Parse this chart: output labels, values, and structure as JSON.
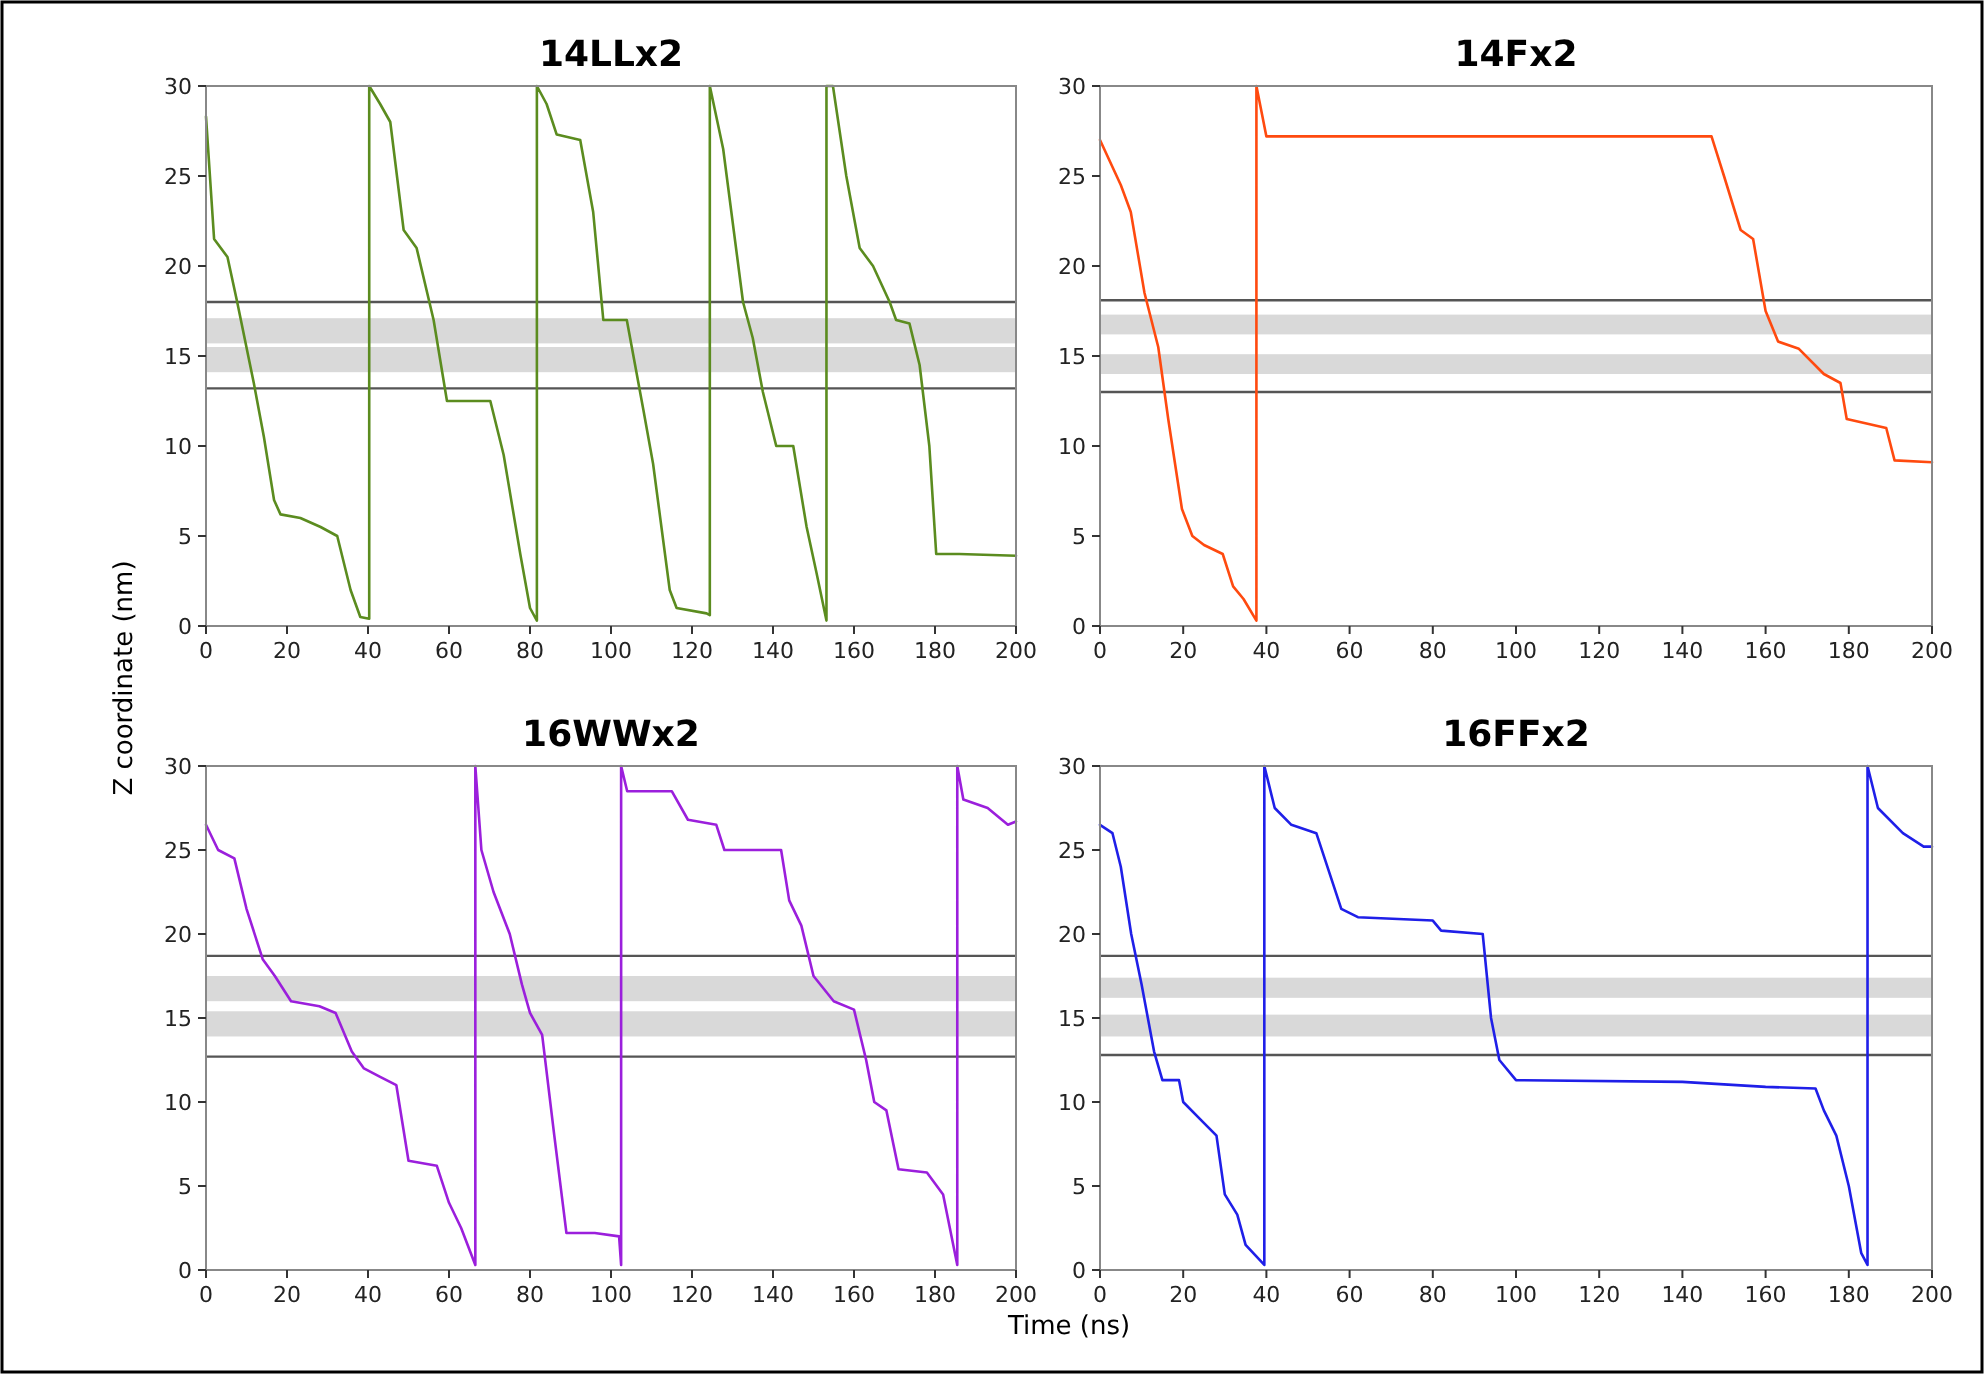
{
  "chart_data": [
    {
      "type": "line",
      "title": "14LLx2",
      "ylabel": "Z coordinate (nm)",
      "xlim": [
        0,
        200
      ],
      "ylim": [
        0,
        30
      ],
      "xticks": [
        0,
        20,
        40,
        60,
        80,
        100,
        120,
        140,
        160,
        180,
        200
      ],
      "yticks": [
        0,
        5,
        10,
        15,
        20,
        25,
        30
      ],
      "grid": false,
      "marker": "none",
      "line_style": "solid",
      "series": [
        {
          "color": "#5b8c1f",
          "x": [
            0,
            2,
            5.3,
            7.7,
            11.8,
            14.3,
            16.8,
            18.4,
            23.3,
            28.3,
            32.4,
            35.7,
            38.1,
            40.3,
            40.3,
            43,
            45.5,
            48.8,
            52,
            56.2,
            59.5,
            70.2,
            73.5,
            77.6,
            80,
            81.7,
            81.7,
            84.1,
            86.6,
            92.4,
            95.6,
            98.1,
            103.9,
            108,
            110.4,
            114.5,
            116.2,
            123.6,
            124.4,
            124.4,
            127.7,
            132.6,
            135,
            137.5,
            140.8,
            145,
            148.3,
            150.7,
            153.2,
            153.2,
            154.8,
            158.1,
            161.4,
            164.7,
            168.8,
            170.4,
            173.7,
            176.2,
            178.6,
            180.3,
            186,
            200
          ],
          "values": [
            28.3,
            21.5,
            20.5,
            18,
            13.5,
            10.5,
            7,
            6.2,
            6,
            5.5,
            5,
            2,
            0.5,
            0.4,
            30,
            29,
            28,
            22,
            21,
            17,
            12.5,
            12.5,
            9.5,
            4,
            1,
            0.3,
            30,
            29,
            27.3,
            27,
            23,
            17,
            17,
            12,
            9,
            2,
            1,
            0.7,
            0.6,
            30,
            26.5,
            18,
            16,
            13,
            10,
            10,
            5.5,
            3,
            0.3,
            30,
            30,
            25,
            21,
            20,
            18,
            17,
            16.8,
            14.5,
            10,
            4,
            4,
            3.9
          ]
        }
      ],
      "ref_lines": [
        {
          "axis": "y",
          "value": 18,
          "color": "#555555"
        },
        {
          "axis": "y",
          "value": 13.2,
          "color": "#555555"
        }
      ],
      "bands": [
        {
          "axis": "y",
          "from": 14.1,
          "to": 15.5,
          "color": "#d9d9d9"
        },
        {
          "axis": "y",
          "from": 15.7,
          "to": 17.1,
          "color": "#d9d9d9"
        }
      ]
    },
    {
      "type": "line",
      "title": "14Fx2",
      "xlim": [
        0,
        200
      ],
      "ylim": [
        0,
        30
      ],
      "xticks": [
        0,
        20,
        40,
        60,
        80,
        100,
        120,
        140,
        160,
        180,
        200
      ],
      "yticks": [
        0,
        5,
        10,
        15,
        20,
        25,
        30
      ],
      "grid": false,
      "marker": "none",
      "line_style": "solid",
      "series": [
        {
          "color": "#ff4a0f",
          "x": [
            0,
            5,
            7.4,
            10.7,
            14,
            16.4,
            19.7,
            22.2,
            25,
            29.5,
            32,
            34.5,
            37.6,
            37.6,
            40,
            80,
            120,
            147,
            150,
            154,
            157,
            160,
            163,
            168,
            174,
            178,
            179.5,
            189,
            191,
            200
          ],
          "values": [
            27,
            24.5,
            23,
            18.5,
            15.5,
            11.5,
            6.5,
            5,
            4.5,
            4,
            2.2,
            1.5,
            0.3,
            30,
            27.2,
            27.2,
            27.2,
            27.2,
            25,
            22,
            21.5,
            17.5,
            15.8,
            15.4,
            14,
            13.5,
            11.5,
            11,
            9.2,
            9.1
          ]
        }
      ],
      "ref_lines": [
        {
          "axis": "y",
          "value": 18.1,
          "color": "#555555"
        },
        {
          "axis": "y",
          "value": 13,
          "color": "#555555"
        }
      ],
      "bands": [
        {
          "axis": "y",
          "from": 14,
          "to": 15.1,
          "color": "#d9d9d9"
        },
        {
          "axis": "y",
          "from": 16.2,
          "to": 17.3,
          "color": "#d9d9d9"
        }
      ]
    },
    {
      "type": "line",
      "title": "16WWx2",
      "xlabel": "Time (ns)",
      "xlim": [
        0,
        200
      ],
      "ylim": [
        0,
        30
      ],
      "xticks": [
        0,
        20,
        40,
        60,
        80,
        100,
        120,
        140,
        160,
        180,
        200
      ],
      "yticks": [
        0,
        5,
        10,
        15,
        20,
        25,
        30
      ],
      "grid": false,
      "marker": "none",
      "line_style": "solid",
      "series": [
        {
          "color": "#9b1fdc",
          "x": [
            0,
            3,
            7,
            10,
            14,
            17,
            21,
            28,
            32,
            36,
            39,
            43,
            47,
            50,
            57,
            60,
            63,
            66.5,
            66.5,
            68,
            71,
            75,
            78,
            80,
            83,
            86,
            89,
            96,
            102,
            102.5,
            102.5,
            104,
            115,
            119,
            126,
            128,
            142,
            144,
            147,
            150,
            155,
            160,
            163,
            165,
            168,
            171,
            178,
            182,
            185.5,
            185.5,
            187,
            193,
            198,
            200
          ],
          "values": [
            26.5,
            25,
            24.5,
            21.5,
            18.5,
            17.5,
            16,
            15.7,
            15.3,
            13,
            12,
            11.5,
            11,
            6.5,
            6.2,
            4,
            2.5,
            0.3,
            30,
            25,
            22.5,
            20,
            17,
            15.3,
            14,
            8,
            2.2,
            2.2,
            2,
            0.3,
            30,
            28.5,
            28.5,
            26.8,
            26.5,
            25,
            25,
            22,
            20.5,
            17.5,
            16,
            15.5,
            12.5,
            10,
            9.5,
            6,
            5.8,
            4.5,
            0.3,
            30,
            28,
            27.5,
            26.5,
            26.7
          ]
        }
      ],
      "ref_lines": [
        {
          "axis": "y",
          "value": 18.7,
          "color": "#555555"
        },
        {
          "axis": "y",
          "value": 12.7,
          "color": "#555555"
        }
      ],
      "bands": [
        {
          "axis": "y",
          "from": 13.9,
          "to": 15.4,
          "color": "#d9d9d9"
        },
        {
          "axis": "y",
          "from": 16,
          "to": 17.5,
          "color": "#d9d9d9"
        }
      ]
    },
    {
      "type": "line",
      "title": "16FFx2",
      "xlim": [
        0,
        200
      ],
      "ylim": [
        0,
        30
      ],
      "xticks": [
        0,
        20,
        40,
        60,
        80,
        100,
        120,
        140,
        160,
        180,
        200
      ],
      "yticks": [
        0,
        5,
        10,
        15,
        20,
        25,
        30
      ],
      "grid": false,
      "marker": "none",
      "line_style": "solid",
      "series": [
        {
          "color": "#1f1fe8",
          "x": [
            0,
            3,
            5,
            7.5,
            10,
            13,
            15,
            19,
            20,
            24,
            28,
            30,
            33,
            35,
            39.5,
            39.5,
            42,
            46,
            52,
            56,
            58,
            62,
            80,
            82,
            92,
            94,
            96,
            100,
            140,
            160,
            172,
            174,
            177,
            180,
            183,
            184.5,
            184.5,
            187,
            193,
            198,
            200
          ],
          "values": [
            26.5,
            26,
            24,
            20,
            17,
            13,
            11.3,
            11.3,
            10,
            9,
            8,
            4.5,
            3.3,
            1.5,
            0.3,
            30,
            27.5,
            26.5,
            26,
            23,
            21.5,
            21,
            20.8,
            20.2,
            20,
            15,
            12.5,
            11.3,
            11.2,
            10.9,
            10.8,
            9.5,
            8,
            5,
            1,
            0.3,
            30,
            27.5,
            26,
            25.2,
            25.2
          ]
        }
      ],
      "ref_lines": [
        {
          "axis": "y",
          "value": 18.7,
          "color": "#555555"
        },
        {
          "axis": "y",
          "value": 12.8,
          "color": "#555555"
        }
      ],
      "bands": [
        {
          "axis": "y",
          "from": 13.9,
          "to": 15.2,
          "color": "#d9d9d9"
        },
        {
          "axis": "y",
          "from": 16.2,
          "to": 17.4,
          "color": "#d9d9d9"
        }
      ]
    }
  ]
}
